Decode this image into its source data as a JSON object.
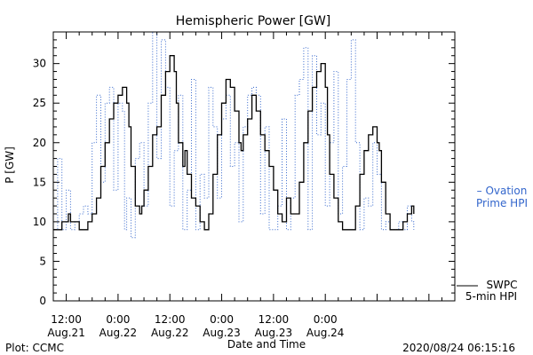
{
  "chart_data": {
    "type": "line",
    "title": "Hemispheric Power [GW]",
    "xlabel": "Date and Time",
    "ylabel": "P [GW]",
    "ylim": [
      0,
      34
    ],
    "xlim_hours": [
      -15,
      78
    ],
    "grid": false,
    "yticks": [
      0,
      5,
      10,
      15,
      20,
      25,
      30
    ],
    "xticks": [
      {
        "top": "12:00",
        "bottom": "Aug.21",
        "h": -12
      },
      {
        "top": "0:00",
        "bottom": "Aug.22",
        "h": 0
      },
      {
        "top": "12:00",
        "bottom": "Aug.22",
        "h": 12
      },
      {
        "top": "0:00",
        "bottom": "Aug.23",
        "h": 24
      },
      {
        "top": "12:00",
        "bottom": "Aug.23",
        "h": 36
      },
      {
        "top": "0:00",
        "bottom": "Aug.24",
        "h": 48
      }
    ],
    "series": [
      {
        "name": "SWPC 5-min HPI",
        "style": "solid",
        "color": "#000000",
        "points": [
          [
            -15,
            9
          ],
          [
            -14,
            9
          ],
          [
            -13,
            10
          ],
          [
            -12,
            10
          ],
          [
            -11.5,
            11
          ],
          [
            -11,
            10
          ],
          [
            -10,
            10
          ],
          [
            -9,
            9
          ],
          [
            -8,
            9
          ],
          [
            -7,
            10
          ],
          [
            -6,
            11
          ],
          [
            -5,
            13
          ],
          [
            -4,
            17
          ],
          [
            -3,
            20
          ],
          [
            -2,
            23
          ],
          [
            -1,
            25
          ],
          [
            0,
            26
          ],
          [
            1,
            27
          ],
          [
            2,
            25
          ],
          [
            2.5,
            22
          ],
          [
            3,
            17
          ],
          [
            4,
            12
          ],
          [
            5,
            11
          ],
          [
            5.5,
            12
          ],
          [
            6,
            14
          ],
          [
            7,
            17
          ],
          [
            8,
            21
          ],
          [
            9,
            22
          ],
          [
            10,
            26
          ],
          [
            11,
            29
          ],
          [
            12,
            31
          ],
          [
            13,
            29
          ],
          [
            13.5,
            25
          ],
          [
            14,
            20
          ],
          [
            15,
            17
          ],
          [
            15.5,
            19
          ],
          [
            16,
            16
          ],
          [
            17,
            13
          ],
          [
            18,
            12
          ],
          [
            19,
            10
          ],
          [
            20,
            9
          ],
          [
            21,
            11
          ],
          [
            22,
            16
          ],
          [
            23,
            21
          ],
          [
            24,
            25
          ],
          [
            25,
            28
          ],
          [
            26,
            27
          ],
          [
            27,
            24
          ],
          [
            28,
            20
          ],
          [
            28.5,
            19
          ],
          [
            29,
            21
          ],
          [
            30,
            23
          ],
          [
            31,
            26
          ],
          [
            32,
            24
          ],
          [
            33,
            21
          ],
          [
            34,
            19
          ],
          [
            35,
            17
          ],
          [
            36,
            14
          ],
          [
            37,
            11
          ],
          [
            38,
            10
          ],
          [
            39,
            13
          ],
          [
            40,
            11
          ],
          [
            41,
            11
          ],
          [
            42,
            15
          ],
          [
            43,
            20
          ],
          [
            44,
            24
          ],
          [
            45,
            27
          ],
          [
            46,
            29
          ],
          [
            47,
            30
          ],
          [
            48,
            27
          ],
          [
            48.5,
            21
          ],
          [
            49,
            16
          ],
          [
            50,
            13
          ],
          [
            51,
            10
          ],
          [
            52,
            9
          ],
          [
            53,
            9
          ],
          [
            54,
            9
          ],
          [
            55,
            12
          ],
          [
            56,
            16
          ],
          [
            57,
            19
          ],
          [
            58,
            21
          ],
          [
            59,
            22
          ],
          [
            60,
            20
          ],
          [
            60.5,
            19
          ],
          [
            61,
            15
          ],
          [
            62,
            11
          ],
          [
            63,
            9
          ],
          [
            64,
            9
          ],
          [
            65,
            9
          ],
          [
            66,
            10
          ],
          [
            67,
            11
          ],
          [
            68,
            12
          ],
          [
            68.5,
            11
          ]
        ]
      },
      {
        "name": "Ovation Prime HPI",
        "style": "dotted",
        "color": "#3366cc",
        "points": [
          [
            -15,
            9
          ],
          [
            -14,
            18
          ],
          [
            -13,
            9
          ],
          [
            -12,
            14
          ],
          [
            -11,
            9
          ],
          [
            -10,
            10
          ],
          [
            -9,
            11
          ],
          [
            -8,
            12
          ],
          [
            -7,
            11
          ],
          [
            -6,
            20
          ],
          [
            -5,
            26
          ],
          [
            -4,
            15
          ],
          [
            -3,
            25
          ],
          [
            -2,
            27
          ],
          [
            -1,
            14
          ],
          [
            0,
            25
          ],
          [
            1,
            24
          ],
          [
            1.5,
            9
          ],
          [
            2,
            13
          ],
          [
            3,
            8
          ],
          [
            4,
            18
          ],
          [
            5,
            20
          ],
          [
            6,
            12
          ],
          [
            7,
            25
          ],
          [
            8,
            34
          ],
          [
            9,
            18
          ],
          [
            10,
            33
          ],
          [
            11,
            27
          ],
          [
            12,
            12
          ],
          [
            13,
            19
          ],
          [
            14,
            26
          ],
          [
            15,
            9
          ],
          [
            16,
            14
          ],
          [
            17,
            28
          ],
          [
            18,
            9
          ],
          [
            19,
            16
          ],
          [
            20,
            13
          ],
          [
            21,
            27
          ],
          [
            22,
            22
          ],
          [
            23,
            13
          ],
          [
            24,
            23
          ],
          [
            25,
            26
          ],
          [
            26,
            17
          ],
          [
            27,
            20
          ],
          [
            28,
            10
          ],
          [
            29,
            22
          ],
          [
            30,
            26
          ],
          [
            31,
            27
          ],
          [
            32,
            26
          ],
          [
            33,
            11
          ],
          [
            34,
            22
          ],
          [
            35,
            9
          ],
          [
            36,
            9
          ],
          [
            37,
            12
          ],
          [
            38,
            23
          ],
          [
            39,
            9
          ],
          [
            40,
            13
          ],
          [
            41,
            26
          ],
          [
            42,
            28
          ],
          [
            43,
            32
          ],
          [
            44,
            9
          ],
          [
            45,
            31
          ],
          [
            46,
            21
          ],
          [
            47,
            25
          ],
          [
            48,
            12
          ],
          [
            49,
            20
          ],
          [
            50,
            29
          ],
          [
            51,
            11
          ],
          [
            52,
            17
          ],
          [
            53,
            28
          ],
          [
            54,
            33
          ],
          [
            55,
            20
          ],
          [
            56,
            9
          ],
          [
            57,
            13
          ],
          [
            58,
            12
          ],
          [
            59,
            20
          ],
          [
            60,
            16
          ],
          [
            61,
            9
          ],
          [
            62,
            10
          ],
          [
            63,
            9
          ],
          [
            64,
            9
          ],
          [
            65,
            10
          ],
          [
            66,
            9
          ],
          [
            67,
            12
          ],
          [
            68,
            10
          ],
          [
            68.5,
            9
          ]
        ]
      }
    ]
  },
  "labels": {
    "ovation_dash": "– Ovation",
    "ovation_line2": "Prime HPI",
    "swpc_line1": "SWPC",
    "swpc_line2": "5-min HPI",
    "plot_credit": "Plot: CCMC",
    "timestamp": "2020/08/24 06:15:16"
  }
}
